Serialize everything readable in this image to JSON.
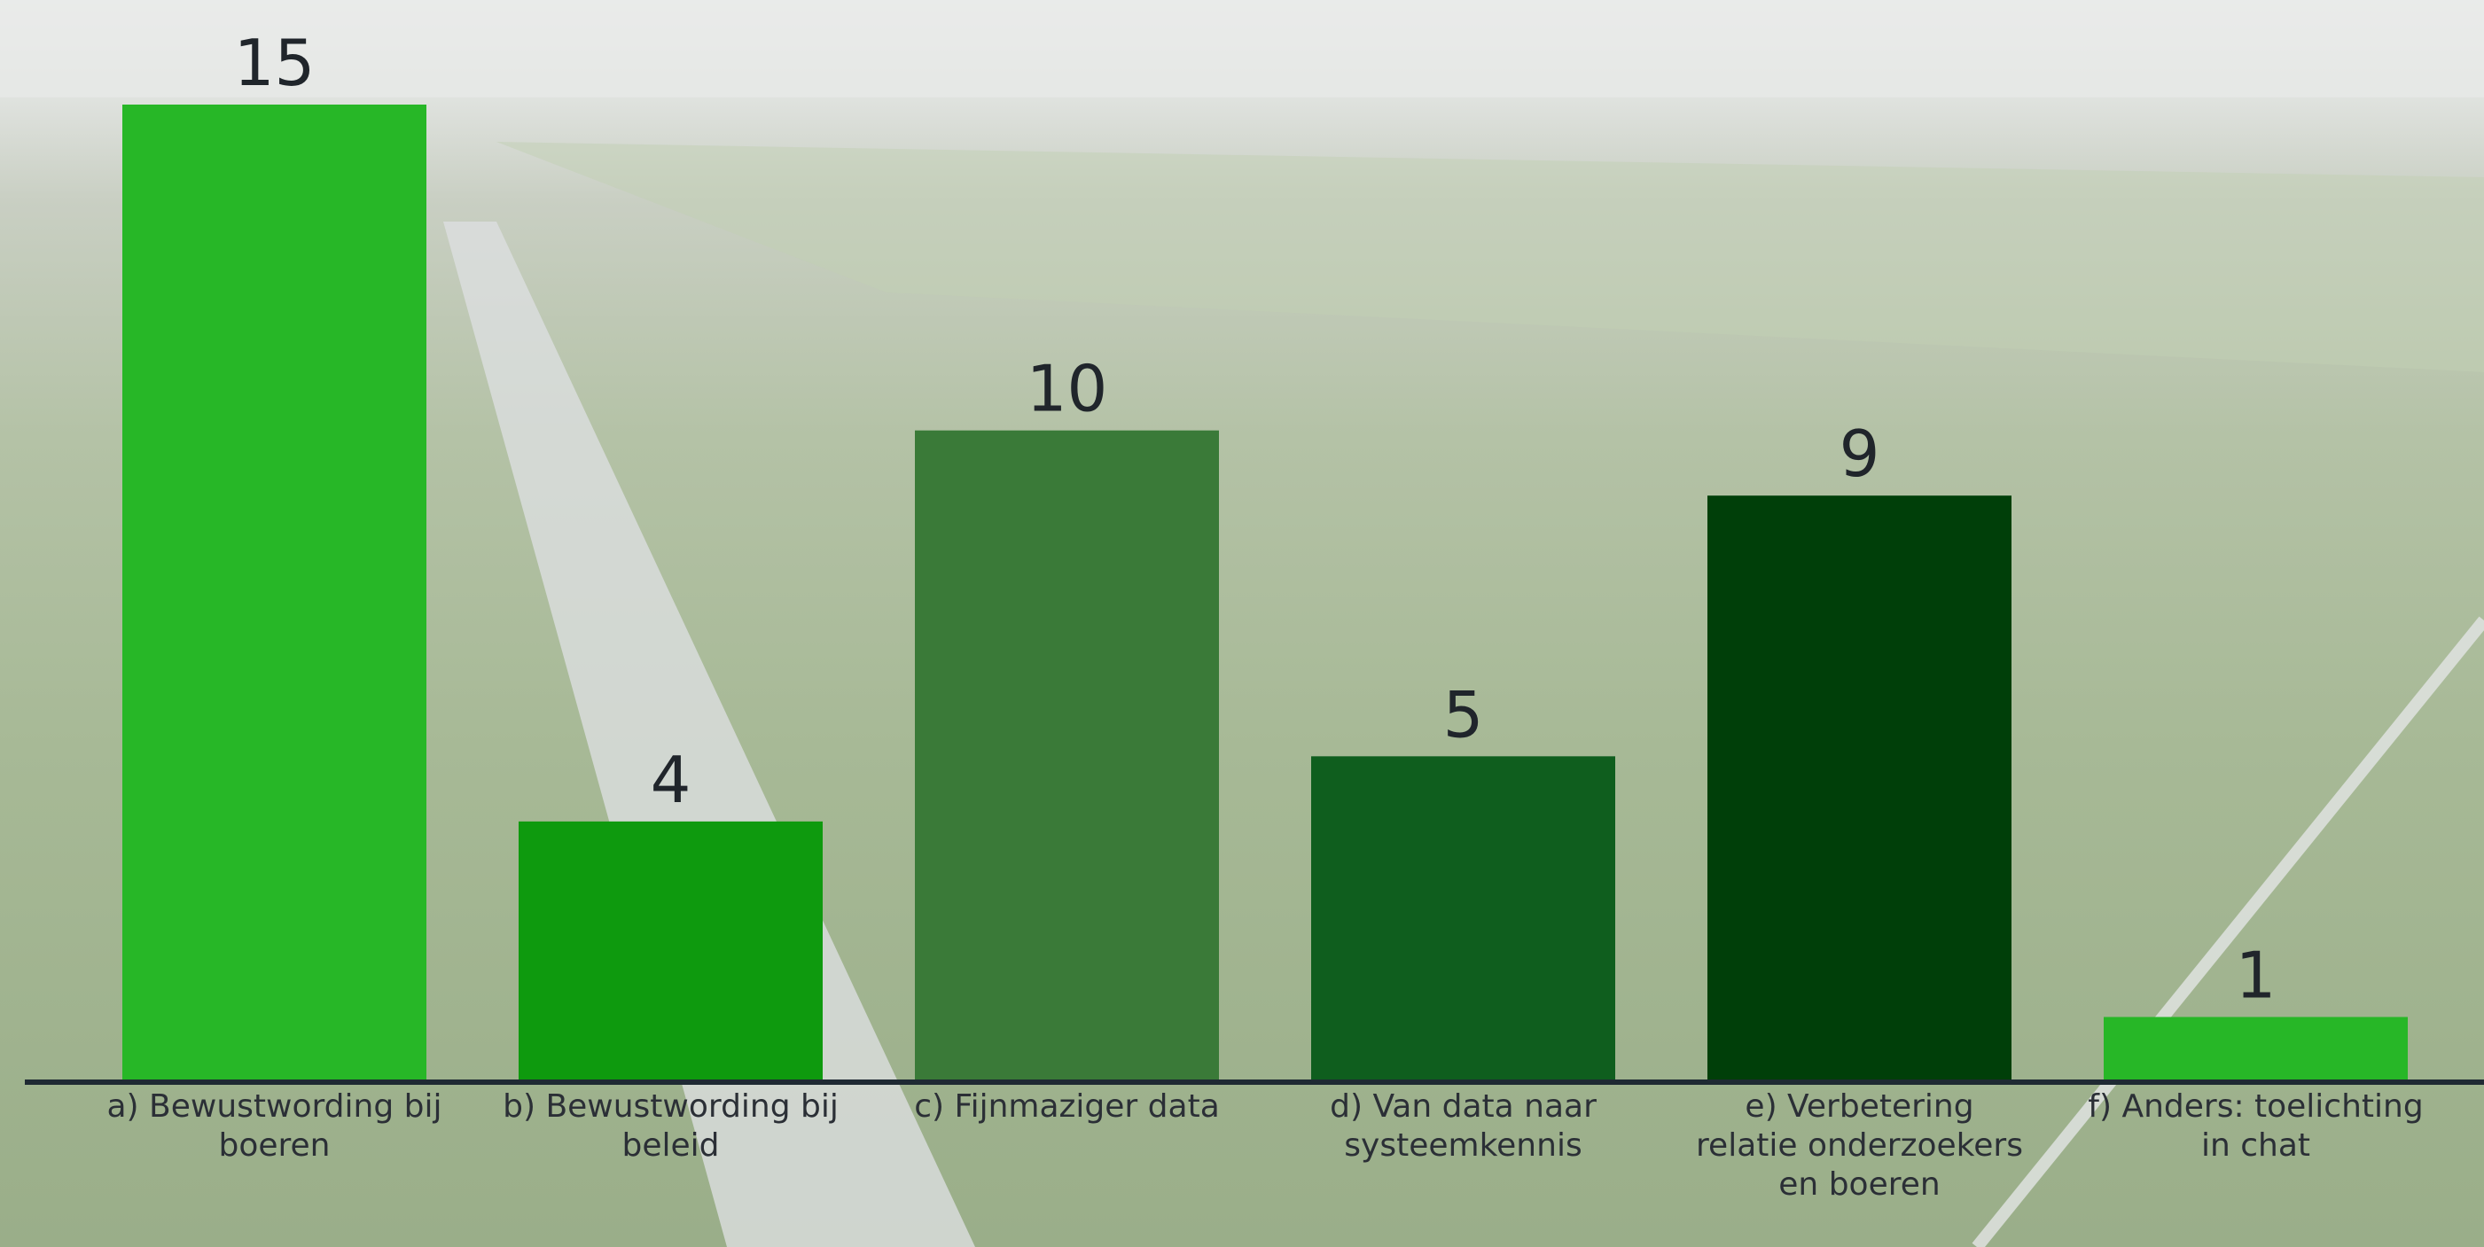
{
  "chart_data": {
    "type": "bar",
    "categories": [
      "a) Bewustwording bij boeren",
      "b) Bewustwording bij beleid",
      "c) Fijnmaziger data",
      "d) Van data naar systeemkennis",
      "e) Verbetering relatie onderzoekers en boeren",
      "f) Anders: toelichting in chat"
    ],
    "values": [
      15,
      4,
      10,
      5,
      9,
      1
    ],
    "colors": [
      "#27b727",
      "#0e9a0e",
      "#3a7a38",
      "#0f5e1e",
      "#003f09",
      "#27b727"
    ],
    "ylim": [
      0,
      15
    ]
  }
}
